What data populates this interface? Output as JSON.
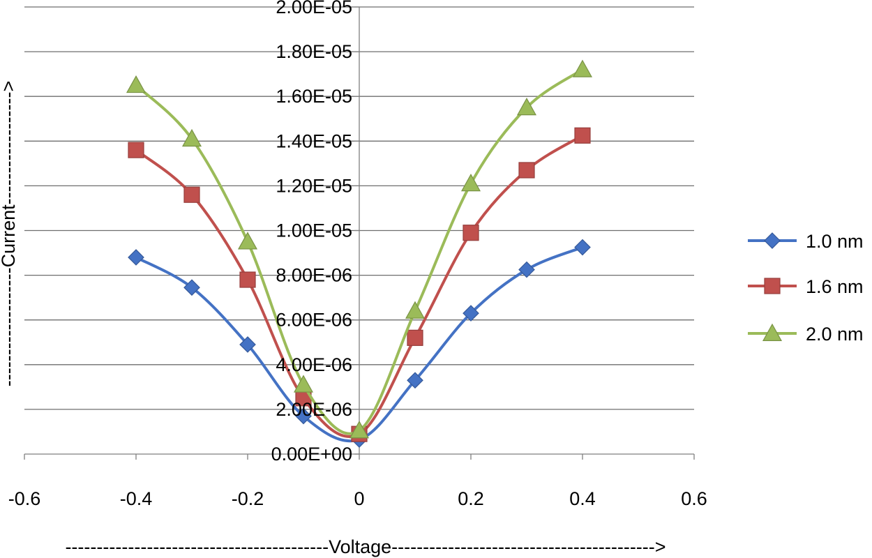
{
  "chart_data": {
    "type": "line",
    "title": "",
    "xlabel": "------------------------------------------Voltage------------------------------------------>",
    "ylabel": "-------------------Current------------------>",
    "xlim": [
      -0.6,
      0.6
    ],
    "ylim": [
      0,
      2e-05
    ],
    "xticks": [
      -0.6,
      -0.4,
      -0.2,
      0,
      0.2,
      0.4,
      0.6
    ],
    "xtick_labels": [
      "-0.6",
      "-0.4",
      "-0.2",
      "0",
      "0.2",
      "0.4",
      "0.6"
    ],
    "yticks": [
      0,
      2e-06,
      4e-06,
      6e-06,
      8e-06,
      1e-05,
      1.2e-05,
      1.4e-05,
      1.6e-05,
      1.8e-05,
      2e-05
    ],
    "ytick_labels": [
      "0.00E+00",
      "2.00E-06",
      "4.00E-06",
      "6.00E-06",
      "8.00E-06",
      "1.00E-05",
      "1.20E-05",
      "1.40E-05",
      "1.60E-05",
      "1.80E-05",
      "2.00E-05"
    ],
    "grid": true,
    "legend_position": "right",
    "x": [
      -0.4,
      -0.3,
      -0.2,
      -0.1,
      0,
      0.1,
      0.2,
      0.3,
      0.4
    ],
    "series": [
      {
        "name": "1.0 nm",
        "marker": "diamond",
        "color": "#4472C4",
        "values": [
          8.8e-06,
          7.45e-06,
          4.9e-06,
          1.7e-06,
          6.5e-07,
          3.3e-06,
          6.3e-06,
          8.25e-06,
          9.25e-06
        ]
      },
      {
        "name": "1.6 nm",
        "marker": "square",
        "color": "#C0504D",
        "values": [
          1.36e-05,
          1.16e-05,
          7.8e-06,
          2.5e-06,
          9e-07,
          5.2e-06,
          9.9e-06,
          1.27e-05,
          1.425e-05
        ]
      },
      {
        "name": "2.0 nm",
        "marker": "triangle",
        "color": "#9BBB59",
        "values": [
          1.65e-05,
          1.41e-05,
          9.5e-06,
          3.1e-06,
          1.05e-06,
          6.4e-06,
          1.21e-05,
          1.55e-05,
          1.72e-05
        ]
      }
    ]
  }
}
